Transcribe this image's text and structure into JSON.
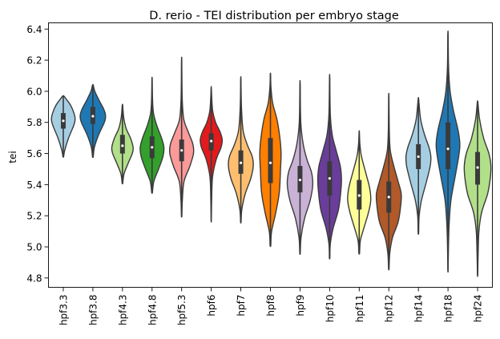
{
  "chart_data": {
    "type": "violin",
    "title": "D. rerio - TEI distribution per embryo stage",
    "xlabel": "",
    "ylabel": "tei",
    "ylim": [
      4.74,
      6.44
    ],
    "yticks": [
      "4.8",
      "5.0",
      "5.2",
      "5.4",
      "5.6",
      "5.8",
      "6.0",
      "6.2",
      "6.4"
    ],
    "grid": false,
    "legend": "none",
    "categories": [
      "hpf3.3",
      "hpf3.8",
      "hpf4.3",
      "hpf4.8",
      "hpf5.3",
      "hpf6",
      "hpf7",
      "hpf8",
      "hpf9",
      "hpf10",
      "hpf11",
      "hpf12",
      "hpf14",
      "hpf18",
      "hpf24"
    ],
    "series": [
      {
        "category": "hpf3.3",
        "color": "#a6cee3",
        "min": 5.58,
        "q1": 5.76,
        "median": 5.81,
        "q3": 5.86,
        "max": 5.97,
        "max_halfwidth": 0.4,
        "density": [
          [
            5.58,
            0.03
          ],
          [
            5.62,
            0.12
          ],
          [
            5.7,
            0.45
          ],
          [
            5.78,
            0.88
          ],
          [
            5.82,
            1.0
          ],
          [
            5.86,
            0.9
          ],
          [
            5.91,
            0.62
          ],
          [
            5.95,
            0.25
          ],
          [
            5.97,
            0.04
          ]
        ]
      },
      {
        "category": "hpf3.8",
        "color": "#1f78b4",
        "min": 5.58,
        "q1": 5.79,
        "median": 5.84,
        "q3": 5.9,
        "max": 6.04,
        "max_halfwidth": 0.43,
        "density": [
          [
            5.58,
            0.03
          ],
          [
            5.64,
            0.12
          ],
          [
            5.72,
            0.45
          ],
          [
            5.8,
            0.9
          ],
          [
            5.84,
            1.0
          ],
          [
            5.88,
            0.88
          ],
          [
            5.94,
            0.5
          ],
          [
            6.0,
            0.15
          ],
          [
            6.04,
            0.03
          ]
        ]
      },
      {
        "category": "hpf4.3",
        "color": "#b2df8a",
        "min": 5.41,
        "q1": 5.6,
        "median": 5.65,
        "q3": 5.72,
        "max": 5.91,
        "max_halfwidth": 0.36,
        "density": [
          [
            5.41,
            0.03
          ],
          [
            5.47,
            0.15
          ],
          [
            5.54,
            0.55
          ],
          [
            5.6,
            0.92
          ],
          [
            5.64,
            1.0
          ],
          [
            5.7,
            0.75
          ],
          [
            5.76,
            0.35
          ],
          [
            5.83,
            0.12
          ],
          [
            5.91,
            0.02
          ]
        ]
      },
      {
        "category": "hpf4.8",
        "color": "#33a02c",
        "min": 5.35,
        "q1": 5.57,
        "median": 5.64,
        "q3": 5.71,
        "max": 6.08,
        "max_halfwidth": 0.4,
        "density": [
          [
            5.35,
            0.03
          ],
          [
            5.42,
            0.15
          ],
          [
            5.5,
            0.55
          ],
          [
            5.58,
            0.92
          ],
          [
            5.64,
            1.0
          ],
          [
            5.7,
            0.8
          ],
          [
            5.78,
            0.4
          ],
          [
            5.86,
            0.12
          ],
          [
            5.95,
            0.04
          ],
          [
            6.08,
            0.01
          ]
        ]
      },
      {
        "category": "hpf5.3",
        "color": "#fb9a99",
        "min": 5.2,
        "q1": 5.55,
        "median": 5.62,
        "q3": 5.69,
        "max": 6.2,
        "max_halfwidth": 0.4,
        "density": [
          [
            5.2,
            0.02
          ],
          [
            5.3,
            0.06
          ],
          [
            5.42,
            0.2
          ],
          [
            5.52,
            0.7
          ],
          [
            5.6,
            1.0
          ],
          [
            5.66,
            0.95
          ],
          [
            5.74,
            0.55
          ],
          [
            5.82,
            0.18
          ],
          [
            5.95,
            0.05
          ],
          [
            6.2,
            0.01
          ]
        ]
      },
      {
        "category": "hpf6",
        "color": "#e31a1c",
        "min": 5.17,
        "q1": 5.62,
        "median": 5.68,
        "q3": 5.73,
        "max": 6.02,
        "max_halfwidth": 0.37,
        "density": [
          [
            5.17,
            0.01
          ],
          [
            5.3,
            0.04
          ],
          [
            5.45,
            0.12
          ],
          [
            5.56,
            0.45
          ],
          [
            5.64,
            0.9
          ],
          [
            5.69,
            1.0
          ],
          [
            5.74,
            0.8
          ],
          [
            5.8,
            0.4
          ],
          [
            5.88,
            0.12
          ],
          [
            6.02,
            0.01
          ]
        ]
      },
      {
        "category": "hpf7",
        "color": "#fdbf6f",
        "min": 5.16,
        "q1": 5.47,
        "median": 5.54,
        "q3": 5.62,
        "max": 6.08,
        "max_halfwidth": 0.42,
        "density": [
          [
            5.16,
            0.02
          ],
          [
            5.24,
            0.08
          ],
          [
            5.34,
            0.35
          ],
          [
            5.44,
            0.8
          ],
          [
            5.52,
            1.0
          ],
          [
            5.58,
            0.92
          ],
          [
            5.66,
            0.5
          ],
          [
            5.75,
            0.18
          ],
          [
            5.9,
            0.05
          ],
          [
            6.08,
            0.01
          ]
        ]
      },
      {
        "category": "hpf8",
        "color": "#ff7f00",
        "min": 5.01,
        "q1": 5.41,
        "median": 5.54,
        "q3": 5.7,
        "max": 6.11,
        "max_halfwidth": 0.4,
        "density": [
          [
            5.01,
            0.03
          ],
          [
            5.1,
            0.1
          ],
          [
            5.22,
            0.45
          ],
          [
            5.35,
            0.75
          ],
          [
            5.5,
            0.85
          ],
          [
            5.6,
            0.9
          ],
          [
            5.7,
            0.8
          ],
          [
            5.82,
            0.55
          ],
          [
            5.92,
            0.2
          ],
          [
            6.02,
            0.05
          ],
          [
            6.11,
            0.01
          ]
        ]
      },
      {
        "category": "hpf9",
        "color": "#cab2d6",
        "min": 4.96,
        "q1": 5.35,
        "median": 5.43,
        "q3": 5.52,
        "max": 6.05,
        "max_halfwidth": 0.43,
        "density": [
          [
            4.96,
            0.02
          ],
          [
            5.06,
            0.08
          ],
          [
            5.18,
            0.35
          ],
          [
            5.3,
            0.8
          ],
          [
            5.4,
            1.0
          ],
          [
            5.48,
            0.9
          ],
          [
            5.56,
            0.55
          ],
          [
            5.66,
            0.25
          ],
          [
            5.8,
            0.06
          ],
          [
            6.05,
            0.01
          ]
        ]
      },
      {
        "category": "hpf10",
        "color": "#6a3d9a",
        "min": 4.93,
        "q1": 5.33,
        "median": 5.44,
        "q3": 5.55,
        "max": 6.09,
        "max_halfwidth": 0.4,
        "density": [
          [
            4.93,
            0.02
          ],
          [
            5.02,
            0.06
          ],
          [
            5.12,
            0.3
          ],
          [
            5.24,
            0.75
          ],
          [
            5.36,
            0.95
          ],
          [
            5.44,
            1.0
          ],
          [
            5.52,
            0.9
          ],
          [
            5.62,
            0.55
          ],
          [
            5.72,
            0.22
          ],
          [
            5.85,
            0.06
          ],
          [
            6.09,
            0.01
          ]
        ]
      },
      {
        "category": "hpf11",
        "color": "#ffff99",
        "min": 4.96,
        "q1": 5.24,
        "median": 5.33,
        "q3": 5.43,
        "max": 5.74,
        "max_halfwidth": 0.39,
        "density": [
          [
            4.96,
            0.03
          ],
          [
            5.04,
            0.1
          ],
          [
            5.12,
            0.4
          ],
          [
            5.22,
            0.8
          ],
          [
            5.3,
            1.0
          ],
          [
            5.38,
            0.9
          ],
          [
            5.48,
            0.55
          ],
          [
            5.58,
            0.2
          ],
          [
            5.66,
            0.06
          ],
          [
            5.74,
            0.01
          ]
        ]
      },
      {
        "category": "hpf12",
        "color": "#b15928",
        "min": 4.86,
        "q1": 5.22,
        "median": 5.32,
        "q3": 5.42,
        "max": 5.97,
        "max_halfwidth": 0.42,
        "density": [
          [
            4.86,
            0.02
          ],
          [
            4.96,
            0.08
          ],
          [
            5.06,
            0.3
          ],
          [
            5.16,
            0.75
          ],
          [
            5.26,
            0.95
          ],
          [
            5.34,
            1.0
          ],
          [
            5.42,
            0.75
          ],
          [
            5.52,
            0.4
          ],
          [
            5.62,
            0.12
          ],
          [
            5.75,
            0.04
          ],
          [
            5.97,
            0.01
          ]
        ]
      },
      {
        "category": "hpf14",
        "color": "#a6cee3",
        "min": 5.09,
        "q1": 5.5,
        "median": 5.58,
        "q3": 5.66,
        "max": 5.95,
        "max_halfwidth": 0.42,
        "density": [
          [
            5.09,
            0.02
          ],
          [
            5.2,
            0.06
          ],
          [
            5.3,
            0.25
          ],
          [
            5.42,
            0.65
          ],
          [
            5.52,
            0.95
          ],
          [
            5.58,
            1.0
          ],
          [
            5.64,
            0.85
          ],
          [
            5.72,
            0.5
          ],
          [
            5.82,
            0.18
          ],
          [
            5.95,
            0.02
          ]
        ]
      },
      {
        "category": "hpf18",
        "color": "#1f78b4",
        "min": 4.85,
        "q1": 5.5,
        "median": 5.63,
        "q3": 5.8,
        "max": 6.37,
        "max_halfwidth": 0.4,
        "density": [
          [
            4.85,
            0.01
          ],
          [
            5.0,
            0.04
          ],
          [
            5.15,
            0.1
          ],
          [
            5.3,
            0.25
          ],
          [
            5.45,
            0.6
          ],
          [
            5.58,
            0.9
          ],
          [
            5.66,
            1.0
          ],
          [
            5.75,
            0.85
          ],
          [
            5.88,
            0.45
          ],
          [
            6.0,
            0.18
          ],
          [
            6.15,
            0.05
          ],
          [
            6.37,
            0.01
          ]
        ]
      },
      {
        "category": "hpf24",
        "color": "#b2df8a",
        "min": 4.82,
        "q1": 5.4,
        "median": 5.51,
        "q3": 5.61,
        "max": 5.93,
        "max_halfwidth": 0.45,
        "density": [
          [
            4.82,
            0.01
          ],
          [
            4.95,
            0.04
          ],
          [
            5.1,
            0.1
          ],
          [
            5.22,
            0.3
          ],
          [
            5.34,
            0.75
          ],
          [
            5.44,
            0.95
          ],
          [
            5.52,
            1.0
          ],
          [
            5.6,
            0.85
          ],
          [
            5.7,
            0.45
          ],
          [
            5.82,
            0.15
          ],
          [
            5.93,
            0.02
          ]
        ]
      }
    ]
  }
}
